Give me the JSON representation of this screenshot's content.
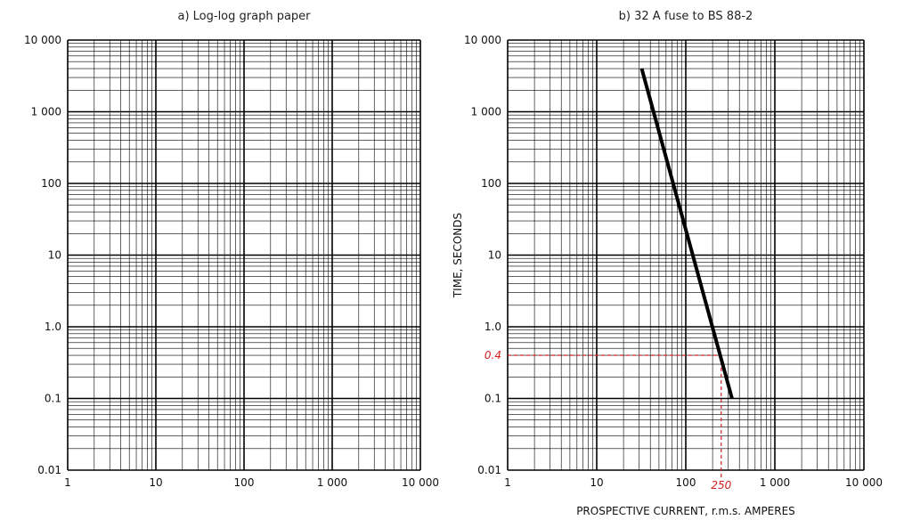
{
  "chart_data": [
    {
      "type": "line",
      "title": "a) Log-log graph paper",
      "xlabel": "",
      "ylabel": "",
      "xscale": "log",
      "yscale": "log",
      "xlim": [
        1,
        10000
      ],
      "ylim": [
        0.01,
        10000
      ],
      "grid": true,
      "xticks": [
        1,
        10,
        100,
        1000,
        10000
      ],
      "xtick_labels": [
        "1",
        "10",
        "100",
        "1 000",
        "10 000"
      ],
      "yticks": [
        0.01,
        0.1,
        1,
        10,
        100,
        1000,
        10000
      ],
      "ytick_labels": [
        "0.01",
        "0.1",
        "1.0",
        "10",
        "100",
        "1 000",
        "10 000"
      ],
      "series": []
    },
    {
      "type": "line",
      "title": "b) 32 A fuse to BS 88-2",
      "xlabel": "PROSPECTIVE CURRENT, r.m.s. AMPERES",
      "ylabel": "TIME, SECONDS",
      "xscale": "log",
      "yscale": "log",
      "xlim": [
        1,
        10000
      ],
      "ylim": [
        0.01,
        10000
      ],
      "grid": true,
      "xticks": [
        1,
        10,
        100,
        1000,
        10000
      ],
      "xtick_labels": [
        "1",
        "10",
        "100",
        "1 000",
        "10 000"
      ],
      "yticks": [
        0.01,
        0.1,
        1,
        10,
        100,
        1000,
        10000
      ],
      "ytick_labels": [
        "0.01",
        "0.1",
        "1.0",
        "10",
        "100",
        "1 000",
        "10 000"
      ],
      "series": [
        {
          "x": [
            32,
            330
          ],
          "y": [
            4000,
            0.1
          ],
          "color": "#000000"
        }
      ],
      "annotations": [
        {
          "x": 250,
          "y": 0.4,
          "x_label": "250",
          "y_label": "0.4",
          "color": "#d42020",
          "style": "dashed"
        }
      ]
    }
  ]
}
